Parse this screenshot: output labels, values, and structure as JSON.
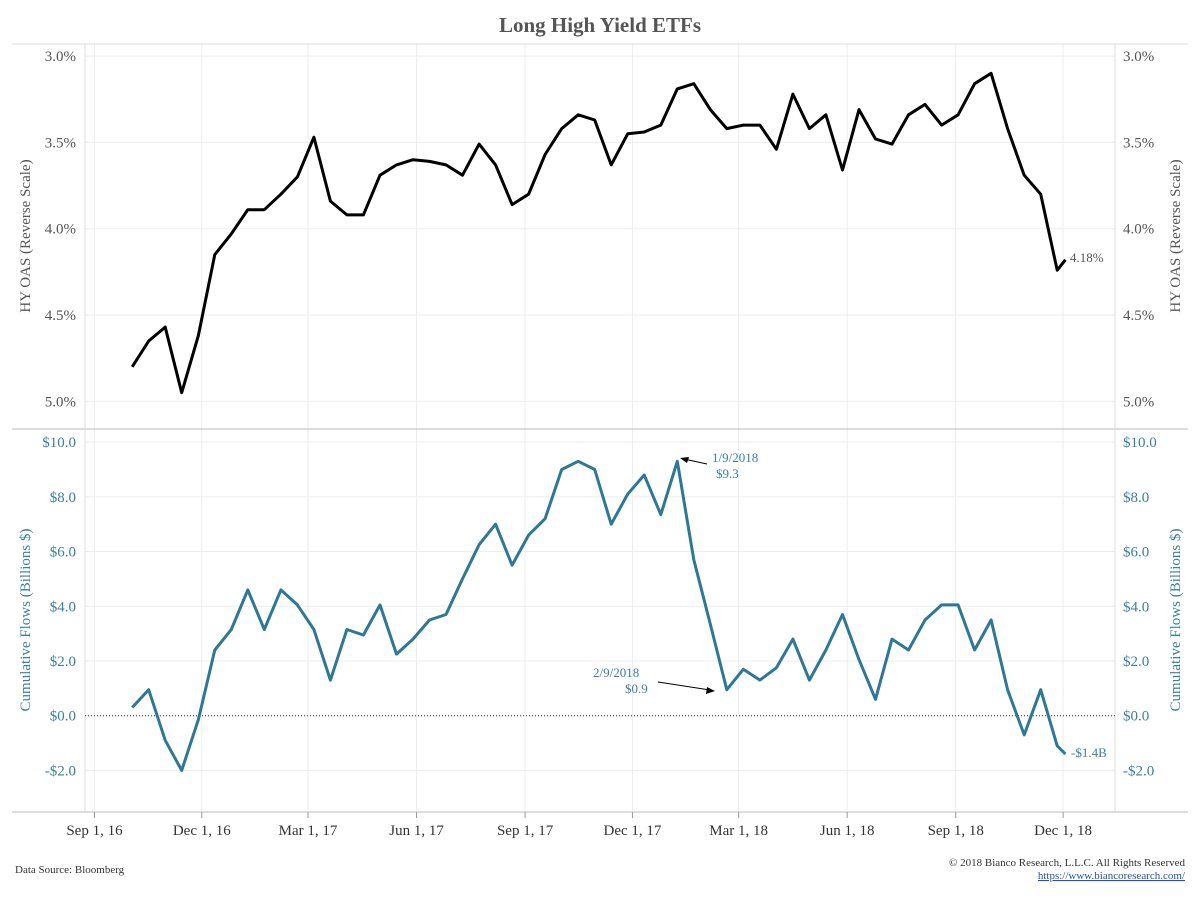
{
  "title": "Long High Yield ETFs",
  "footer": {
    "source": "Data Source: Bloomberg",
    "copyright": "© 2018 Bianco Research, L.L.C. All Rights Reserved",
    "url": "https://www.biancoresearch.com/"
  },
  "chart_data": [
    {
      "type": "line",
      "ylabel": "HY OAS (Reverse Scale)",
      "color": "#000000",
      "y_reversed": true,
      "x": [
        "2016-10-03",
        "2016-10-17",
        "2016-10-31",
        "2016-11-14",
        "2016-11-28",
        "2016-12-12",
        "2016-12-26",
        "2017-01-09",
        "2017-01-23",
        "2017-02-06",
        "2017-02-20",
        "2017-03-06",
        "2017-03-20",
        "2017-04-03",
        "2017-04-17",
        "2017-05-01",
        "2017-05-15",
        "2017-05-29",
        "2017-06-12",
        "2017-06-26",
        "2017-07-10",
        "2017-07-24",
        "2017-08-07",
        "2017-08-21",
        "2017-09-04",
        "2017-09-18",
        "2017-10-02",
        "2017-10-16",
        "2017-10-30",
        "2017-11-13",
        "2017-11-27",
        "2017-12-11",
        "2017-12-25",
        "2018-01-08",
        "2018-01-22",
        "2018-02-05",
        "2018-02-19",
        "2018-03-05",
        "2018-03-19",
        "2018-04-02",
        "2018-04-16",
        "2018-04-30",
        "2018-05-14",
        "2018-05-28",
        "2018-06-11",
        "2018-06-25",
        "2018-07-09",
        "2018-07-23",
        "2018-08-06",
        "2018-08-20",
        "2018-09-03",
        "2018-09-17",
        "2018-10-01",
        "2018-10-15",
        "2018-10-29",
        "2018-11-12",
        "2018-11-26",
        "2018-12-03"
      ],
      "values": [
        4.8,
        4.65,
        4.57,
        4.95,
        4.62,
        4.15,
        4.03,
        3.89,
        3.89,
        3.8,
        3.7,
        3.47,
        3.84,
        3.92,
        3.92,
        3.69,
        3.63,
        3.6,
        3.61,
        3.63,
        3.69,
        3.51,
        3.63,
        3.86,
        3.8,
        3.57,
        3.42,
        3.34,
        3.37,
        3.63,
        3.45,
        3.44,
        3.4,
        3.19,
        3.16,
        3.31,
        3.42,
        3.4,
        3.4,
        3.54,
        3.22,
        3.42,
        3.34,
        3.66,
        3.31,
        3.48,
        3.51,
        3.34,
        3.28,
        3.4,
        3.34,
        3.16,
        3.1,
        3.42,
        3.69,
        3.8,
        4.24,
        4.18
      ],
      "ylim": [
        2.93,
        5.16
      ],
      "yticks": [
        {
          "value": 3.0,
          "label": "3.0%"
        },
        {
          "value": 3.5,
          "label": "3.5%"
        },
        {
          "value": 4.0,
          "label": "4.0%"
        },
        {
          "value": 4.5,
          "label": "4.5%"
        },
        {
          "value": 5.0,
          "label": "5.0%"
        }
      ],
      "annotations": [
        "4.18%"
      ],
      "grid": true
    },
    {
      "type": "line",
      "ylabel": "Cumulative Flows (Billions $)",
      "color": "#2e7896",
      "zero_line": true,
      "x": [
        "2016-10-03",
        "2016-10-17",
        "2016-10-31",
        "2016-11-14",
        "2016-11-28",
        "2016-12-12",
        "2016-12-26",
        "2017-01-09",
        "2017-01-23",
        "2017-02-06",
        "2017-02-20",
        "2017-03-06",
        "2017-03-20",
        "2017-04-03",
        "2017-04-17",
        "2017-05-01",
        "2017-05-15",
        "2017-05-29",
        "2017-06-12",
        "2017-06-26",
        "2017-07-10",
        "2017-07-24",
        "2017-08-07",
        "2017-08-21",
        "2017-09-04",
        "2017-09-18",
        "2017-10-02",
        "2017-10-16",
        "2017-10-30",
        "2017-11-13",
        "2017-11-27",
        "2017-12-11",
        "2017-12-25",
        "2018-01-08",
        "2018-01-22",
        "2018-02-05",
        "2018-02-19",
        "2018-03-05",
        "2018-03-19",
        "2018-04-02",
        "2018-04-16",
        "2018-04-30",
        "2018-05-14",
        "2018-05-28",
        "2018-06-11",
        "2018-06-25",
        "2018-07-09",
        "2018-07-23",
        "2018-08-06",
        "2018-08-20",
        "2018-09-03",
        "2018-09-17",
        "2018-10-01",
        "2018-10-15",
        "2018-10-29",
        "2018-11-12",
        "2018-11-26",
        "2018-12-03"
      ],
      "values": [
        0.3,
        0.95,
        -0.9,
        -2.0,
        -0.15,
        2.4,
        3.15,
        4.6,
        3.15,
        4.6,
        4.05,
        3.15,
        1.3,
        3.15,
        2.95,
        4.05,
        2.25,
        2.8,
        3.5,
        3.7,
        5.0,
        6.25,
        7.0,
        5.5,
        6.6,
        7.2,
        9.0,
        9.3,
        9.0,
        7.0,
        8.1,
        8.8,
        7.35,
        9.3,
        5.7,
        3.35,
        0.95,
        1.7,
        1.3,
        1.75,
        2.8,
        1.3,
        2.4,
        3.7,
        2.05,
        0.6,
        2.8,
        2.4,
        3.5,
        4.05,
        4.05,
        2.4,
        3.5,
        0.95,
        -0.7,
        0.95,
        -1.1,
        -1.4
      ],
      "ylim": [
        -3.52,
        10.48
      ],
      "yticks": [
        {
          "value": 10,
          "label": "$10.0"
        },
        {
          "value": 8,
          "label": "$8.0"
        },
        {
          "value": 6,
          "label": "$6.0"
        },
        {
          "value": 4,
          "label": "$4.0"
        },
        {
          "value": 2,
          "label": "$2.0"
        },
        {
          "value": 0,
          "label": "$0.0"
        },
        {
          "value": -2,
          "label": "-$2.0"
        }
      ],
      "xlim": [
        "2016-08-24",
        "2019-01-14"
      ],
      "xticks": [
        {
          "value": "2016-09-01",
          "label": "Sep 1, 16"
        },
        {
          "value": "2016-12-01",
          "label": "Dec 1, 16"
        },
        {
          "value": "2017-03-01",
          "label": "Mar 1, 17"
        },
        {
          "value": "2017-06-01",
          "label": "Jun 1, 17"
        },
        {
          "value": "2017-09-01",
          "label": "Sep 1, 17"
        },
        {
          "value": "2017-12-01",
          "label": "Dec 1, 17"
        },
        {
          "value": "2018-03-01",
          "label": "Mar 1, 18"
        },
        {
          "value": "2018-06-01",
          "label": "Jun 1, 18"
        },
        {
          "value": "2018-09-01",
          "label": "Sep 1, 18"
        },
        {
          "value": "2018-12-01",
          "label": "Dec 1, 18"
        }
      ],
      "annotations": [
        "1/9/2018",
        "$9.3",
        "2/9/2018",
        "$0.9",
        "-$1.4B"
      ],
      "grid": true
    }
  ]
}
